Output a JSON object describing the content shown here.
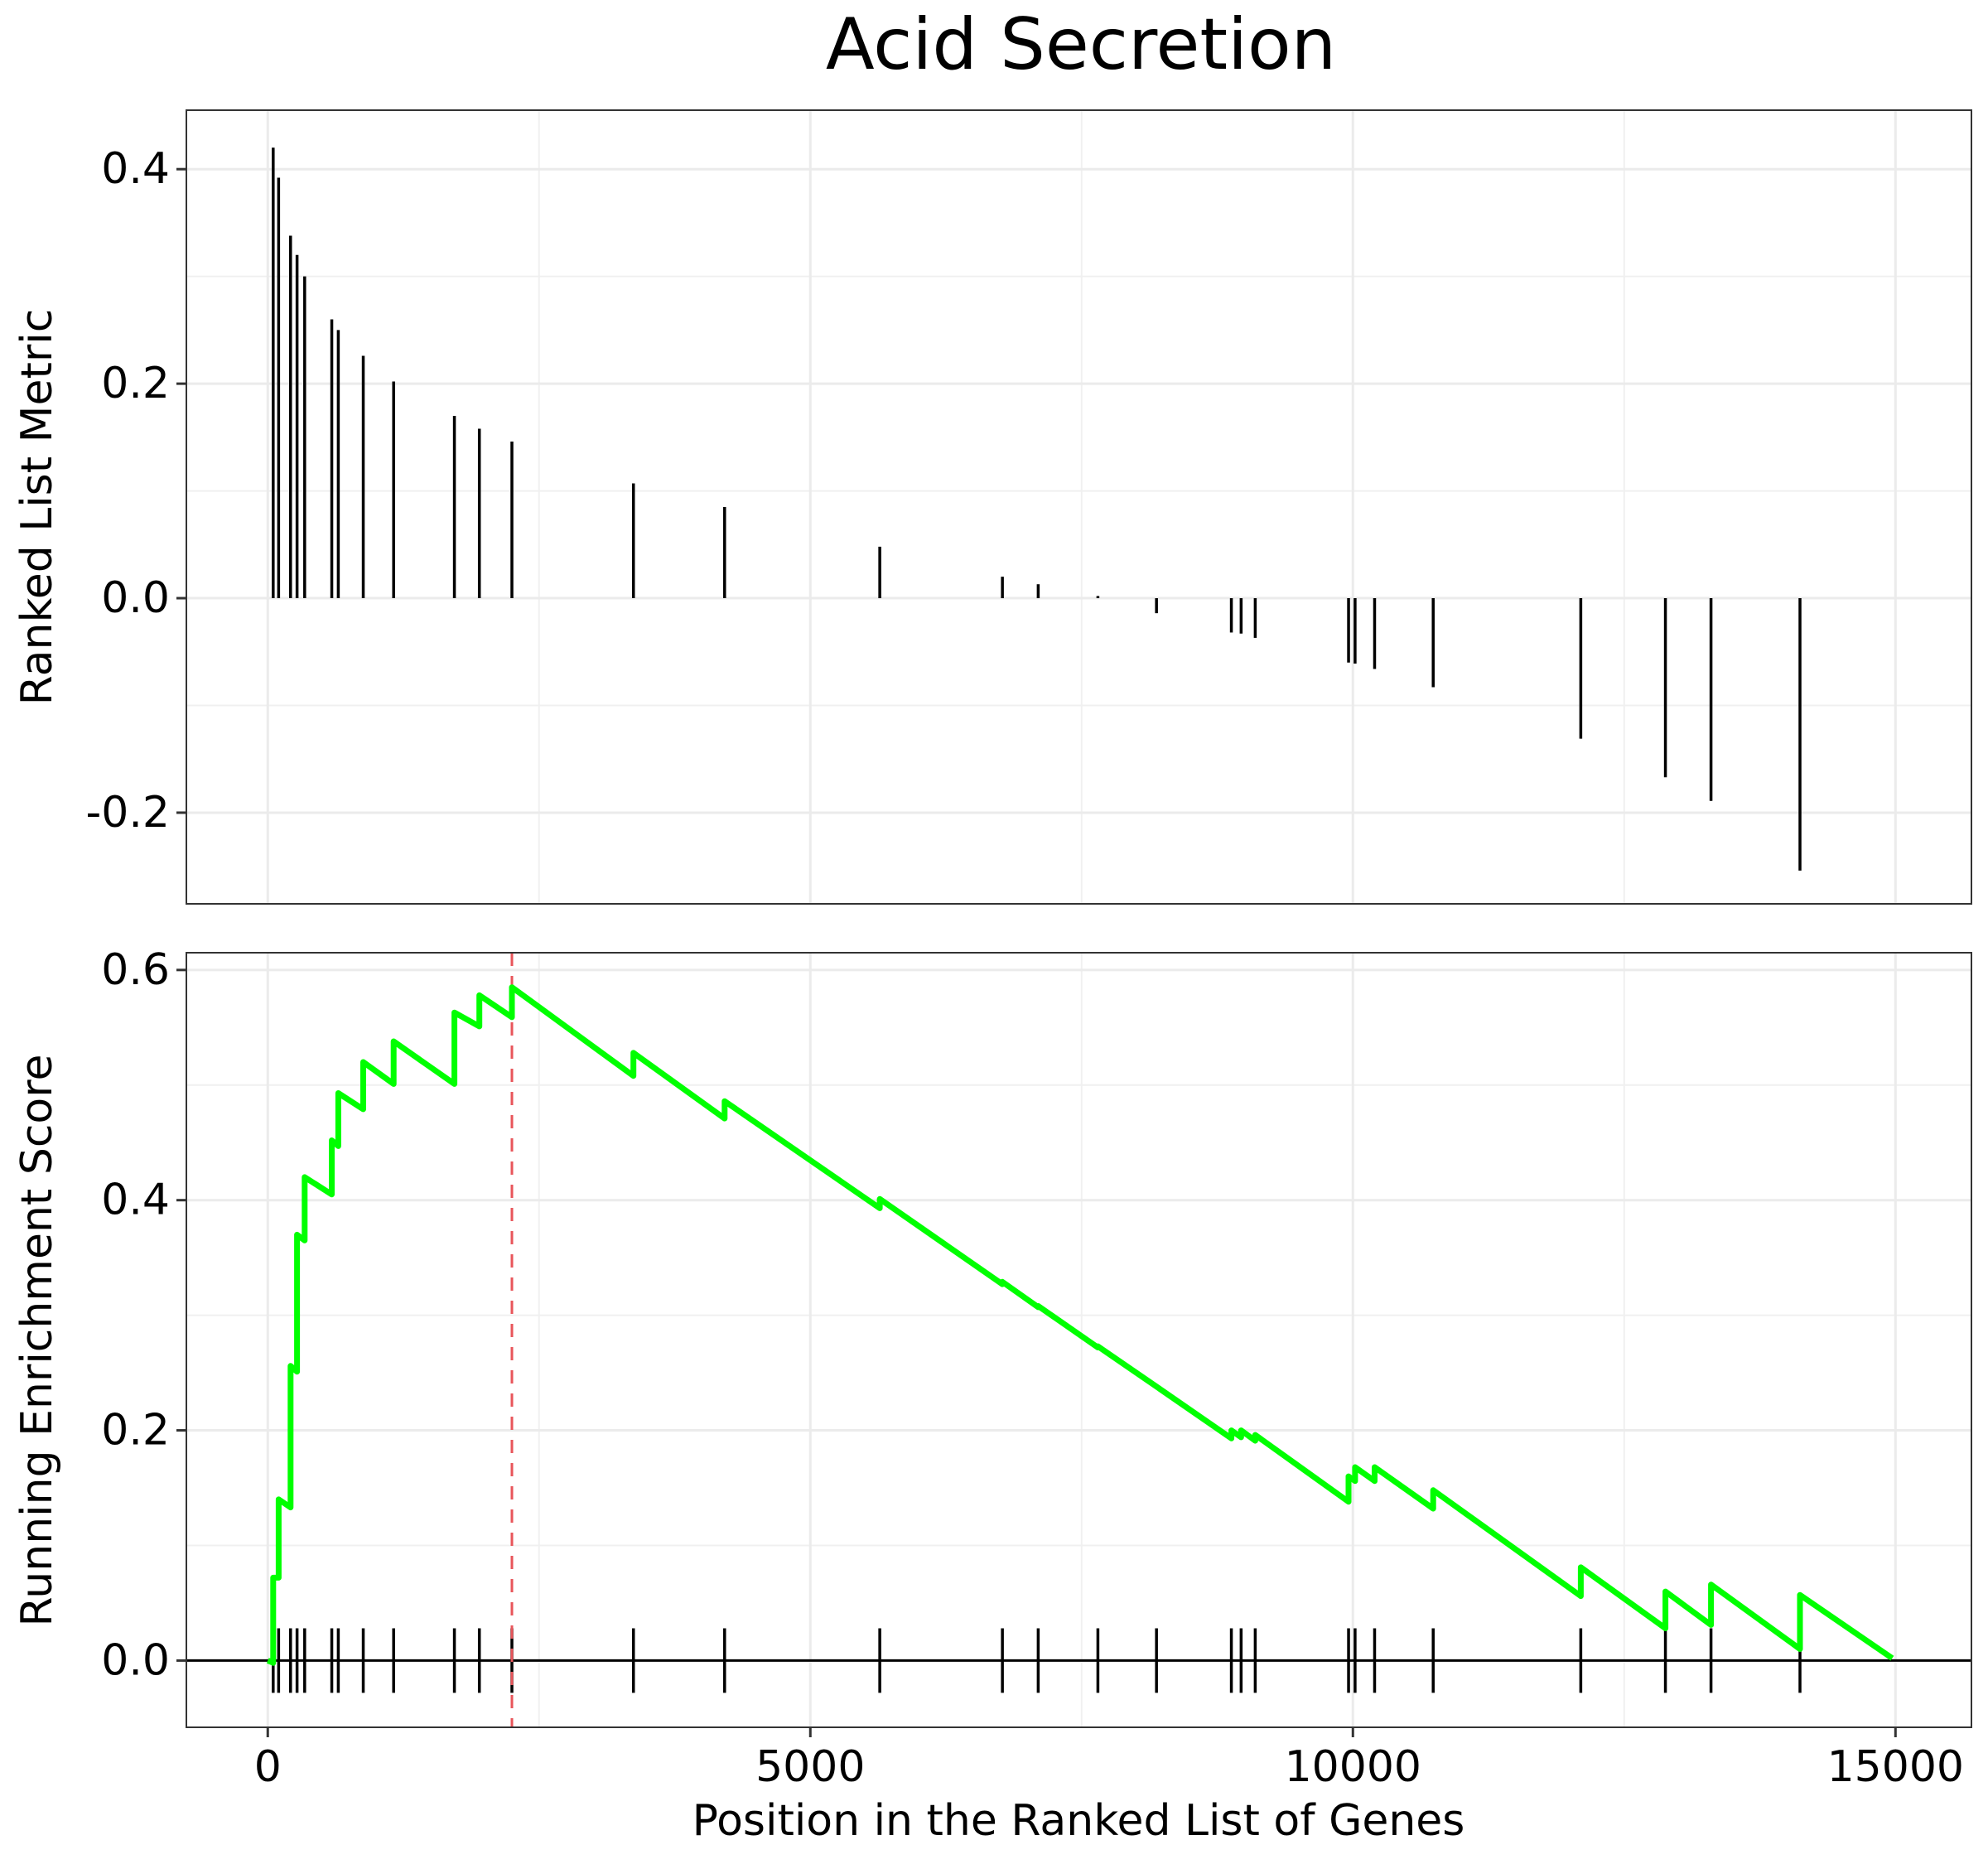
{
  "chart_data": {
    "type": "line",
    "title": "Acid Secretion",
    "xlabel": "Position in the Ranked List of Genes",
    "xlim": [
      -750,
      15700
    ],
    "x_ticks": [
      0,
      5000,
      10000,
      15000
    ],
    "x_tick_labels": [
      "0",
      "5000",
      "10000",
      "15000"
    ],
    "grid": true,
    "panels": [
      {
        "name": "ranked-list-metric",
        "type": "bar",
        "ylabel": "Ranked List Metric",
        "ylim": [
          -0.285,
          0.455
        ],
        "y_ticks": [
          -0.2,
          0.0,
          0.2,
          0.4
        ],
        "y_tick_labels": [
          "-0.2",
          "0.0",
          "0.2",
          "0.4"
        ],
        "bars": [
          {
            "x": 50,
            "y": 0.42
          },
          {
            "x": 100,
            "y": 0.392
          },
          {
            "x": 210,
            "y": 0.338
          },
          {
            "x": 270,
            "y": 0.32
          },
          {
            "x": 340,
            "y": 0.3
          },
          {
            "x": 590,
            "y": 0.26
          },
          {
            "x": 650,
            "y": 0.25
          },
          {
            "x": 880,
            "y": 0.226
          },
          {
            "x": 1160,
            "y": 0.202
          },
          {
            "x": 1720,
            "y": 0.17
          },
          {
            "x": 1950,
            "y": 0.158
          },
          {
            "x": 2250,
            "y": 0.146
          },
          {
            "x": 3370,
            "y": 0.107
          },
          {
            "x": 4210,
            "y": 0.085
          },
          {
            "x": 5640,
            "y": 0.048
          },
          {
            "x": 6770,
            "y": 0.02
          },
          {
            "x": 7100,
            "y": 0.013
          },
          {
            "x": 7650,
            "y": 0.002
          },
          {
            "x": 8190,
            "y": -0.014
          },
          {
            "x": 8880,
            "y": -0.032
          },
          {
            "x": 8970,
            "y": -0.033
          },
          {
            "x": 9100,
            "y": -0.037
          },
          {
            "x": 9960,
            "y": -0.06
          },
          {
            "x": 10020,
            "y": -0.061
          },
          {
            "x": 10200,
            "y": -0.066
          },
          {
            "x": 10740,
            "y": -0.083
          },
          {
            "x": 12100,
            "y": -0.131
          },
          {
            "x": 12880,
            "y": -0.167
          },
          {
            "x": 13300,
            "y": -0.189
          },
          {
            "x": 14120,
            "y": -0.254
          }
        ]
      },
      {
        "name": "running-enrichment-score",
        "type": "line",
        "ylabel": "Running Enrichment Score",
        "ylim": [
          -0.058,
          0.615
        ],
        "y_ticks": [
          0.0,
          0.2,
          0.4,
          0.6
        ],
        "y_tick_labels": [
          "0.0",
          "0.2",
          "0.4",
          "0.6"
        ],
        "line_color": "#00FF00",
        "zero_line": 0.0,
        "max_es_position": 2250,
        "max_es_line_color": "#E8555A",
        "hits": [
          50,
          100,
          210,
          270,
          340,
          590,
          650,
          880,
          1160,
          1720,
          1950,
          2250,
          3370,
          4210,
          5640,
          6770,
          7100,
          7650,
          8190,
          8880,
          8970,
          9100,
          9960,
          10020,
          10200,
          10740,
          12100,
          12880,
          13300,
          14120
        ],
        "x": [
          0,
          50,
          50,
          100,
          100,
          210,
          210,
          270,
          270,
          340,
          340,
          590,
          590,
          650,
          650,
          880,
          880,
          1160,
          1160,
          1720,
          1720,
          1950,
          1950,
          2250,
          2250,
          3370,
          3370,
          4210,
          4210,
          5640,
          5640,
          6770,
          6770,
          7100,
          7100,
          7650,
          7650,
          8190,
          8190,
          8880,
          8880,
          8970,
          8970,
          9100,
          9100,
          9960,
          9960,
          10020,
          10020,
          10200,
          10200,
          10740,
          10740,
          12100,
          12100,
          12880,
          12880,
          13300,
          13300,
          14120,
          14120,
          14970
        ],
        "values": [
          0.0,
          -0.002,
          0.072,
          0.072,
          0.14,
          0.133,
          0.256,
          0.251,
          0.37,
          0.365,
          0.42,
          0.405,
          0.452,
          0.447,
          0.493,
          0.479,
          0.52,
          0.501,
          0.538,
          0.501,
          0.563,
          0.551,
          0.578,
          0.559,
          0.585,
          0.508,
          0.528,
          0.471,
          0.486,
          0.393,
          0.401,
          0.327,
          0.329,
          0.307,
          0.308,
          0.272,
          0.273,
          0.238,
          0.238,
          0.193,
          0.2,
          0.194,
          0.2,
          0.191,
          0.196,
          0.138,
          0.16,
          0.156,
          0.168,
          0.156,
          0.168,
          0.132,
          0.148,
          0.056,
          0.081,
          0.028,
          0.06,
          0.031,
          0.066,
          0.01,
          0.057,
          0.002
        ]
      }
    ]
  }
}
